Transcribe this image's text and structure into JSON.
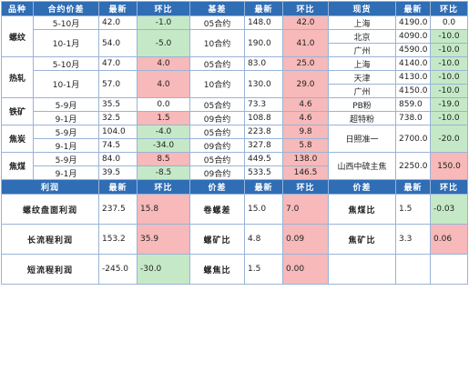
{
  "header1": [
    "品种",
    "合约价差",
    "最新",
    "环比",
    "基差",
    "最新",
    "环比",
    "现货",
    "最新",
    "环比"
  ],
  "groups": [
    {
      "name": "螺纹",
      "rows": [
        {
          "spread": "5-10月",
          "latest": "42.0",
          "chg": "-1.0",
          "chgc": "g",
          "basis": "05合约",
          "blatest": "148.0",
          "bchg": "42.0",
          "bchgc": "r"
        },
        {
          "spread": "10-1月",
          "latest": "54.0",
          "chg": "-5.0",
          "chgc": "g",
          "basis": "10合约",
          "blatest": "190.0",
          "bchg": "41.0",
          "bchgc": "r"
        }
      ],
      "spot": [
        {
          "name": "上海",
          "latest": "4190.0",
          "chg": "0.0",
          "chgc": ""
        },
        {
          "name": "北京",
          "latest": "4090.0",
          "chg": "-10.0",
          "chgc": "g"
        },
        {
          "name": "广州",
          "latest": "4590.0",
          "chg": "-10.0",
          "chgc": "g"
        }
      ]
    },
    {
      "name": "热轧",
      "rows": [
        {
          "spread": "5-10月",
          "latest": "47.0",
          "chg": "4.0",
          "chgc": "r",
          "basis": "05合约",
          "blatest": "83.0",
          "bchg": "25.0",
          "bchgc": "r"
        },
        {
          "spread": "10-1月",
          "latest": "57.0",
          "chg": "4.0",
          "chgc": "r",
          "basis": "10合约",
          "blatest": "130.0",
          "bchg": "29.0",
          "bchgc": "r"
        }
      ],
      "spot": [
        {
          "name": "上海",
          "latest": "4140.0",
          "chg": "-10.0",
          "chgc": "g"
        },
        {
          "name": "天津",
          "latest": "4130.0",
          "chg": "-10.0",
          "chgc": "g"
        },
        {
          "name": "广州",
          "latest": "4150.0",
          "chg": "-10.0",
          "chgc": "g"
        }
      ]
    },
    {
      "name": "铁矿",
      "rows": [
        {
          "spread": "5-9月",
          "latest": "35.5",
          "chg": "0.0",
          "chgc": "",
          "basis": "05合约",
          "blatest": "73.3",
          "bchg": "4.6",
          "bchgc": "r"
        },
        {
          "spread": "9-1月",
          "latest": "32.5",
          "chg": "1.5",
          "chgc": "r",
          "basis": "09合约",
          "blatest": "108.8",
          "bchg": "4.6",
          "bchgc": "r"
        }
      ],
      "spot": [
        {
          "name": "PB粉",
          "latest": "859.0",
          "chg": "-19.0",
          "chgc": "g"
        },
        {
          "name": "超特粉",
          "latest": "738.0",
          "chg": "-10.0",
          "chgc": "g"
        }
      ]
    },
    {
      "name": "焦炭",
      "rows": [
        {
          "spread": "5-9月",
          "latest": "104.0",
          "chg": "-4.0",
          "chgc": "g",
          "basis": "05合约",
          "blatest": "223.8",
          "bchg": "9.8",
          "bchgc": "r"
        },
        {
          "spread": "9-1月",
          "latest": "74.5",
          "chg": "-34.0",
          "chgc": "g",
          "basis": "09合约",
          "blatest": "327.8",
          "bchg": "5.8",
          "bchgc": "r"
        }
      ],
      "spot": [
        {
          "name": "日照准一",
          "latest": "2700.0",
          "chg": "-20.0",
          "chgc": "g"
        }
      ]
    },
    {
      "name": "焦煤",
      "rows": [
        {
          "spread": "5-9月",
          "latest": "84.0",
          "chg": "8.5",
          "chgc": "r",
          "basis": "05合约",
          "blatest": "449.5",
          "bchg": "138.0",
          "bchgc": "r"
        },
        {
          "spread": "9-1月",
          "latest": "39.5",
          "chg": "-8.5",
          "chgc": "g",
          "basis": "09合约",
          "blatest": "533.5",
          "bchg": "146.5",
          "bchgc": "r"
        }
      ],
      "spot": [
        {
          "name": "山西中硫主焦",
          "latest": "2250.0",
          "chg": "150.0",
          "chgc": "r"
        }
      ]
    }
  ],
  "header2": [
    "利润",
    "最新",
    "环比",
    "价差",
    "最新",
    "环比",
    "价差",
    "最新",
    "环比"
  ],
  "profit": [
    {
      "a": "螺纹盘面利润",
      "al": "237.5",
      "ac": "15.8",
      "acc": "r",
      "b": "卷螺差",
      "bl": "15.0",
      "bc": "7.0",
      "bcc": "r",
      "c": "焦煤比",
      "cl": "1.5",
      "cc": "-0.03",
      "ccc": "g"
    },
    {
      "a": "长流程利润",
      "al": "153.2",
      "ac": "35.9",
      "acc": "r",
      "b": "螺矿比",
      "bl": "4.8",
      "bc": "0.09",
      "bcc": "r",
      "c": "焦矿比",
      "cl": "3.3",
      "cc": "0.06",
      "ccc": "r"
    },
    {
      "a": "短流程利润",
      "al": "-245.0",
      "ac": "-30.0",
      "acc": "g",
      "b": "螺焦比",
      "bl": "1.5",
      "bc": "0.00",
      "bcc": "r",
      "c": "",
      "cl": "",
      "cc": "",
      "ccc": ""
    }
  ]
}
